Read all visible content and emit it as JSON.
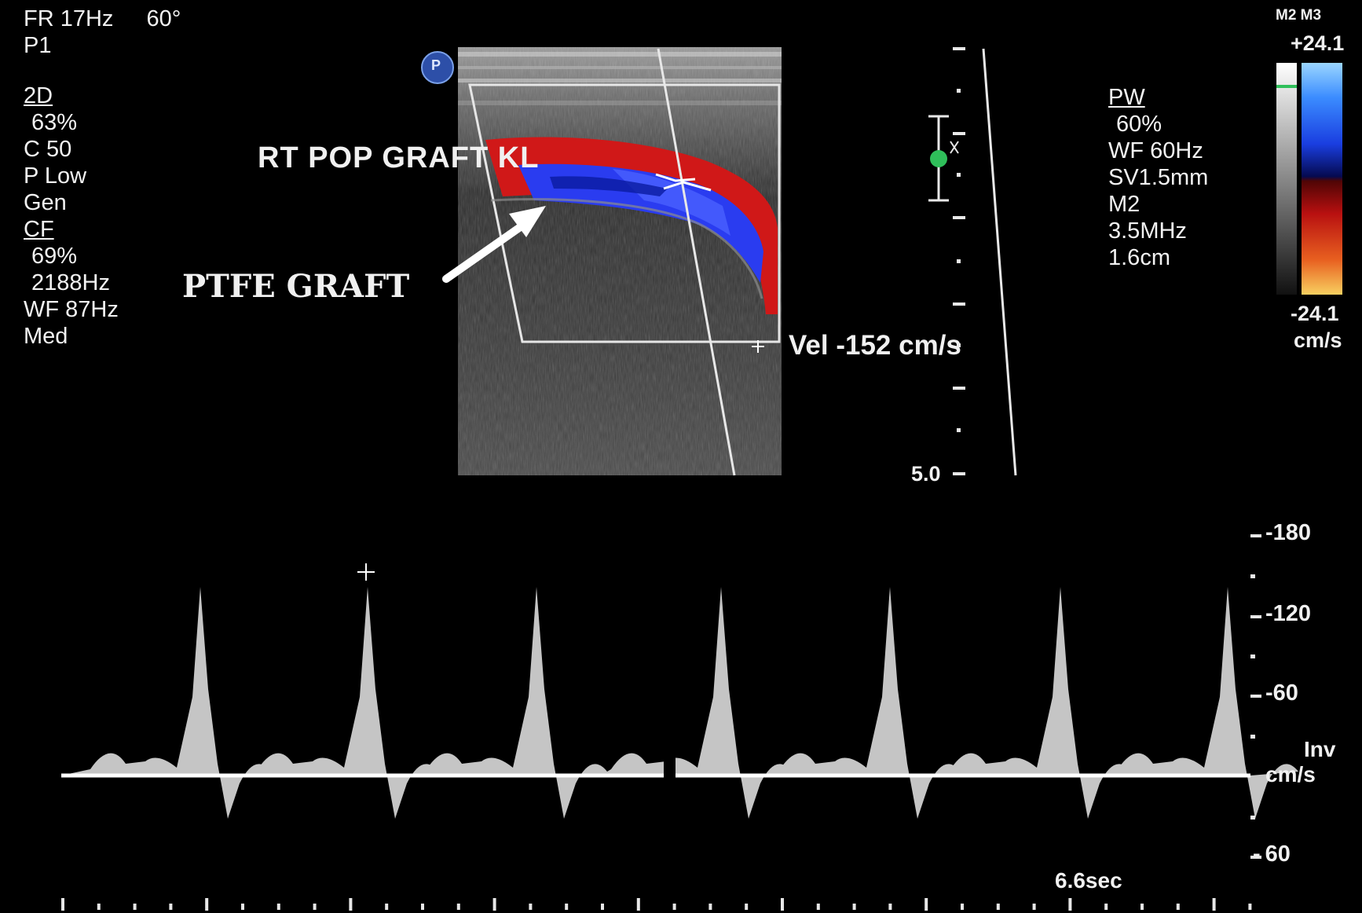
{
  "header": {
    "frame_rate": "FR 17Hz",
    "angle": "60°",
    "preset": "P1"
  },
  "params_2d": {
    "title": "2D",
    "lines": [
      "63%",
      "C 50",
      "P Low",
      "Gen"
    ]
  },
  "params_cf": {
    "title": "CF",
    "lines": [
      "69%",
      "2188Hz",
      "WF  87Hz",
      "Med"
    ]
  },
  "params_pw": {
    "title": "PW",
    "lines": [
      "60%",
      "WF  60Hz",
      "SV1.5mm",
      "M2",
      "3.5MHz",
      "1.6cm"
    ]
  },
  "probe_marker": "P",
  "labels": {
    "vessel": "RT  POP  GRAFT    KL",
    "graft": "PTFE GRAFT",
    "velocity": "Vel   -152 cm/s"
  },
  "color_bar": {
    "modes": "M2 M3",
    "max": "+24.1",
    "min": "-24.1",
    "unit": "cm/s"
  },
  "depth_scale": {
    "bottom_label": "5.0"
  },
  "spectral": {
    "scale_labels": [
      "-180",
      "-120",
      "-60",
      "60"
    ],
    "inv_label": "Inv",
    "unit": "cm/s",
    "sweep_time": "6.6sec"
  },
  "colors": {
    "flow_red": "#d01818",
    "flow_blue": "#2a3cf0",
    "flow_dark_blue": "#0a1aa0",
    "marker_green": "#2fbf5a",
    "probe_blue": "#2d4fa8"
  }
}
